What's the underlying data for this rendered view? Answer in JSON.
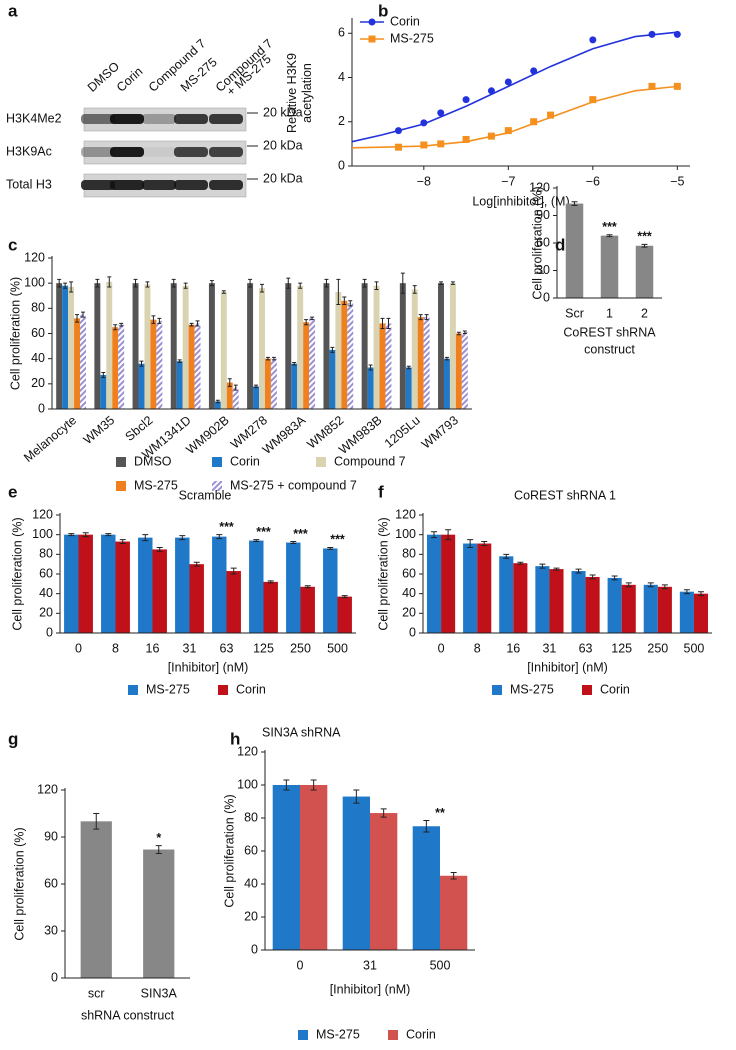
{
  "chart_data": [
    {
      "panel": "a",
      "type": "blot",
      "lanes": [
        "DMSO",
        "Corin",
        "Compound 7",
        "MS-275",
        [
          "Compound 7",
          "+ MS-275"
        ]
      ],
      "rows": [
        "H3K4Me2",
        "H3K9Ac",
        "Total H3"
      ],
      "markers": [
        "20 kDa",
        "20 kDa",
        "20 kDa"
      ]
    },
    {
      "panel": "b",
      "type": "line",
      "xlabel": "Log[inhibitor], (M)",
      "ylabel": [
        "Relative H3K9",
        "acetylation"
      ],
      "xlim": [
        -8.85,
        -4.85
      ],
      "ylim": [
        0,
        6.6
      ],
      "xticks": [
        {
          "value": -8,
          "label": "−8"
        },
        {
          "value": -7,
          "label": "−7"
        },
        {
          "value": -6,
          "label": "−6"
        },
        {
          "value": -5,
          "label": "−5"
        }
      ],
      "yticks": [
        0,
        2,
        4,
        6
      ],
      "legend": "upper left",
      "series": [
        {
          "name": "Corin",
          "color": "#2233dd",
          "marker": "circle",
          "x": [
            -8.3,
            -8,
            -7.8,
            -7.5,
            -7.2,
            -7,
            -6.7,
            -6,
            -5.3,
            -5
          ],
          "values": [
            1.6,
            1.95,
            2.4,
            3.0,
            3.4,
            3.8,
            4.3,
            5.7,
            5.95,
            5.95
          ],
          "errors": [
            0.1,
            0.15,
            0.1,
            0.1,
            0.1,
            0.15,
            0.1,
            0.05,
            0.1,
            0.1
          ],
          "fit": {
            "x": [
              -8.85,
              -8.5,
              -8,
              -7.5,
              -7,
              -6.5,
              -6,
              -5.5,
              -5
            ],
            "values": [
              1.1,
              1.4,
              1.9,
              2.7,
              3.6,
              4.5,
              5.3,
              5.85,
              6.05
            ]
          }
        },
        {
          "name": "MS-275",
          "color": "#f5901e",
          "marker": "square",
          "x": [
            -8.3,
            -8,
            -7.8,
            -7.5,
            -7.2,
            -7,
            -6.7,
            -6.5,
            -6,
            -5.3,
            -5
          ],
          "values": [
            0.85,
            0.95,
            1.0,
            1.2,
            1.35,
            1.6,
            2.0,
            2.3,
            3.0,
            3.6,
            3.6
          ],
          "errors": [
            0.05,
            0.05,
            0.05,
            0.05,
            0.05,
            0.1,
            0.1,
            0.05,
            0.1,
            0.1,
            0.1
          ],
          "fit": {
            "x": [
              -8.85,
              -8.5,
              -8,
              -7.5,
              -7,
              -6.5,
              -6,
              -5.5,
              -5
            ],
            "values": [
              0.82,
              0.85,
              0.9,
              1.1,
              1.5,
              2.2,
              2.9,
              3.4,
              3.6
            ]
          }
        }
      ]
    },
    {
      "panel": "c",
      "type": "bar",
      "ylabel": "Cell proliferation (%)",
      "categories": [
        "Melanocyte",
        "WM35",
        "Sbcl2",
        "WM1341D",
        "WM902B",
        "WM278",
        "WM983A",
        "WM852",
        "WM983B",
        "1205Lu",
        "WM793"
      ],
      "ylim": [
        0,
        120
      ],
      "yticks": [
        0,
        20,
        40,
        60,
        80,
        100,
        120
      ],
      "legend": "below",
      "series": [
        {
          "name": "DMSO",
          "color": "#555555",
          "values": [
            100,
            100,
            100,
            100,
            100,
            100,
            100,
            100,
            100,
            100,
            100
          ],
          "errors": [
            3,
            3,
            3,
            3,
            2,
            3,
            4,
            3,
            3,
            8,
            1
          ]
        },
        {
          "name": "Corin",
          "color": "#1f78c8",
          "values": [
            98,
            27,
            36,
            38,
            6,
            18,
            36,
            47,
            33,
            33,
            40
          ],
          "errors": [
            2,
            2,
            2,
            1,
            1,
            1,
            1,
            2,
            2,
            1,
            1
          ]
        },
        {
          "name": "Compound 7",
          "color": "#d9d3b1",
          "values": [
            97,
            101,
            99,
            98,
            93,
            96,
            98,
            93,
            98,
            95,
            100
          ],
          "errors": [
            4,
            4,
            2,
            2,
            1,
            3,
            2,
            10,
            3,
            3,
            1
          ]
        },
        {
          "name": "MS-275",
          "color": "#f0801e",
          "values": [
            72,
            65,
            71,
            67,
            21,
            40,
            69,
            86,
            68,
            73,
            60
          ],
          "errors": [
            3,
            2,
            3,
            1,
            3,
            1,
            2,
            3,
            4,
            2,
            1
          ]
        },
        {
          "name": "MS-275 + compound 7",
          "color": "#9b8fd6",
          "hatch": true,
          "values": [
            75,
            67,
            70,
            68,
            17,
            40,
            72,
            84,
            68,
            73,
            61
          ],
          "errors": [
            2,
            1,
            2,
            2,
            2,
            1,
            1,
            2,
            4,
            2,
            1
          ]
        }
      ]
    },
    {
      "panel": "d",
      "type": "bar",
      "ylabel": "Cell proliferation (%)",
      "xlabel": [
        "CoREST shRNA",
        "construct"
      ],
      "categories": [
        "Scr",
        "1",
        "2"
      ],
      "values": [
        103,
        68,
        57
      ],
      "errors": [
        2,
        1,
        1.5
      ],
      "color": "#878787",
      "significance": [
        null,
        "***",
        "***"
      ],
      "ylim": [
        0,
        120
      ],
      "yticks": [
        0,
        30,
        60,
        90,
        120
      ]
    },
    {
      "panel": "e",
      "type": "bar",
      "title": "Scramble",
      "ylabel": "Cell proliferation (%)",
      "xlabel": "[Inhibitor] (nM)",
      "categories": [
        "0",
        "8",
        "16",
        "31",
        "63",
        "125",
        "250",
        "500"
      ],
      "ylim": [
        0,
        120
      ],
      "yticks": [
        0,
        20,
        40,
        60,
        80,
        100,
        120
      ],
      "legend": "below",
      "significance": [
        null,
        null,
        null,
        null,
        "***",
        "***",
        "***",
        "***"
      ],
      "series": [
        {
          "name": "MS-275",
          "color": "#1f78c8",
          "values": [
            100,
            100,
            97,
            97,
            98,
            94,
            92,
            86
          ],
          "errors": [
            1,
            1,
            3,
            2,
            2,
            1,
            1,
            1
          ]
        },
        {
          "name": "Corin",
          "color": "#c0111a",
          "values": [
            100,
            93,
            85,
            70,
            63,
            52,
            47,
            37
          ],
          "errors": [
            2,
            2,
            2,
            2,
            3,
            1,
            1,
            1
          ]
        }
      ]
    },
    {
      "panel": "f",
      "type": "bar",
      "title": "CoREST shRNA 1",
      "ylabel": "Cell proliferation (%)",
      "xlabel": "[Inhibitor] (nM)",
      "categories": [
        "0",
        "8",
        "16",
        "31",
        "63",
        "125",
        "250",
        "500"
      ],
      "ylim": [
        0,
        120
      ],
      "yticks": [
        0,
        20,
        40,
        60,
        80,
        100,
        120
      ],
      "legend": "below",
      "series": [
        {
          "name": "MS-275",
          "color": "#1f78c8",
          "values": [
            100,
            91,
            78,
            68,
            63,
            56,
            49,
            42
          ],
          "errors": [
            3,
            4,
            2,
            2,
            2,
            2,
            2,
            2
          ]
        },
        {
          "name": "Corin",
          "color": "#c0111a",
          "values": [
            100,
            91,
            71,
            65,
            57,
            49,
            47,
            40
          ],
          "errors": [
            5,
            2,
            1,
            1,
            2,
            2,
            2,
            2
          ]
        }
      ]
    },
    {
      "panel": "g",
      "type": "bar",
      "ylabel": "Cell proliferation (%)",
      "xlabel": "shRNA construct",
      "categories": [
        "scr",
        "SIN3A"
      ],
      "values": [
        100,
        82
      ],
      "errors": [
        5,
        2.5
      ],
      "color": "#878787",
      "significance": [
        null,
        "*"
      ],
      "ylim": [
        0,
        120
      ],
      "yticks": [
        0,
        30,
        60,
        90,
        120
      ]
    },
    {
      "panel": "h",
      "type": "bar",
      "title": "SIN3A shRNA",
      "ylabel": "Cell proliferation (%)",
      "xlabel": "[Inhibitor] (nM)",
      "categories": [
        "0",
        "31",
        "500"
      ],
      "ylim": [
        0,
        120
      ],
      "yticks": [
        0,
        20,
        40,
        60,
        80,
        100,
        120
      ],
      "legend": "below",
      "significance": [
        null,
        null,
        "**"
      ],
      "series": [
        {
          "name": "MS-275",
          "color": "#1f78c8",
          "values": [
            100,
            93,
            75
          ],
          "errors": [
            3,
            4,
            3.5
          ]
        },
        {
          "name": "Corin",
          "color": "#d2524f",
          "values": [
            100,
            83,
            45
          ],
          "errors": [
            3,
            2.5,
            2
          ]
        }
      ]
    }
  ]
}
